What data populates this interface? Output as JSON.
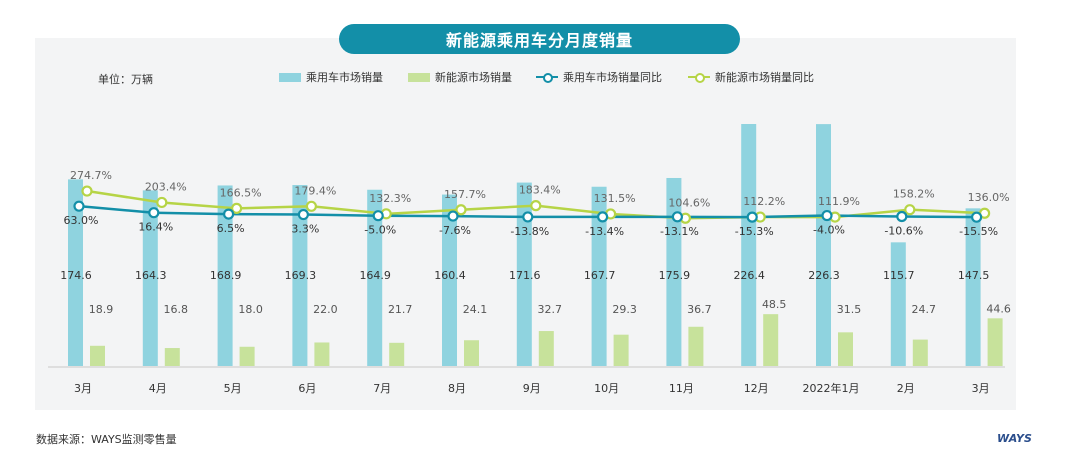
{
  "title": "新能源乘用车分月度销量",
  "unit_label": "单位：万辆",
  "source": "数据来源：WAYS监测零售量",
  "logo_text": "WAYS",
  "colors": {
    "passenger_bar": "#8fd3df",
    "nev_bar": "#c7e29b",
    "passenger_line": "#138fa8",
    "nev_line": "#b6d446",
    "label_text": "#333333"
  },
  "legend": {
    "passenger_sales": "乘用车市场销量",
    "nev_sales": "新能源市场销量",
    "passenger_yoy": "乘用车市场销量同比",
    "nev_yoy": "新能源市场销量同比"
  },
  "chart_data": {
    "type": "bar",
    "categories": [
      "3月",
      "4月",
      "5月",
      "6月",
      "7月",
      "8月",
      "9月",
      "10月",
      "11月",
      "12月",
      "2022年1月",
      "2月",
      "3月"
    ],
    "series": [
      {
        "name": "乘用车市场销量",
        "type": "bar",
        "values": [
          174.6,
          164.3,
          168.9,
          169.3,
          164.9,
          160.4,
          171.6,
          167.7,
          175.9,
          226.4,
          226.3,
          115.7,
          147.5
        ]
      },
      {
        "name": "新能源市场销量",
        "type": "bar",
        "values": [
          18.9,
          16.8,
          18.0,
          22.0,
          21.7,
          24.1,
          32.7,
          29.3,
          36.7,
          48.5,
          31.5,
          24.7,
          44.6
        ]
      },
      {
        "name": "乘用车市场销量同比",
        "type": "line",
        "unit": "%",
        "values": [
          63.0,
          16.4,
          6.5,
          3.3,
          -5.0,
          -7.6,
          -13.8,
          -13.4,
          -13.1,
          -15.3,
          -4.0,
          -10.6,
          -15.5
        ]
      },
      {
        "name": "新能源市场销量同比",
        "type": "line",
        "unit": "%",
        "values": [
          274.7,
          203.4,
          166.5,
          179.4,
          132.3,
          157.7,
          183.4,
          131.5,
          104.6,
          112.2,
          111.9,
          158.2,
          136.0
        ]
      }
    ],
    "ylabel": "单位：万辆",
    "legend_position": "top",
    "grid": false
  }
}
